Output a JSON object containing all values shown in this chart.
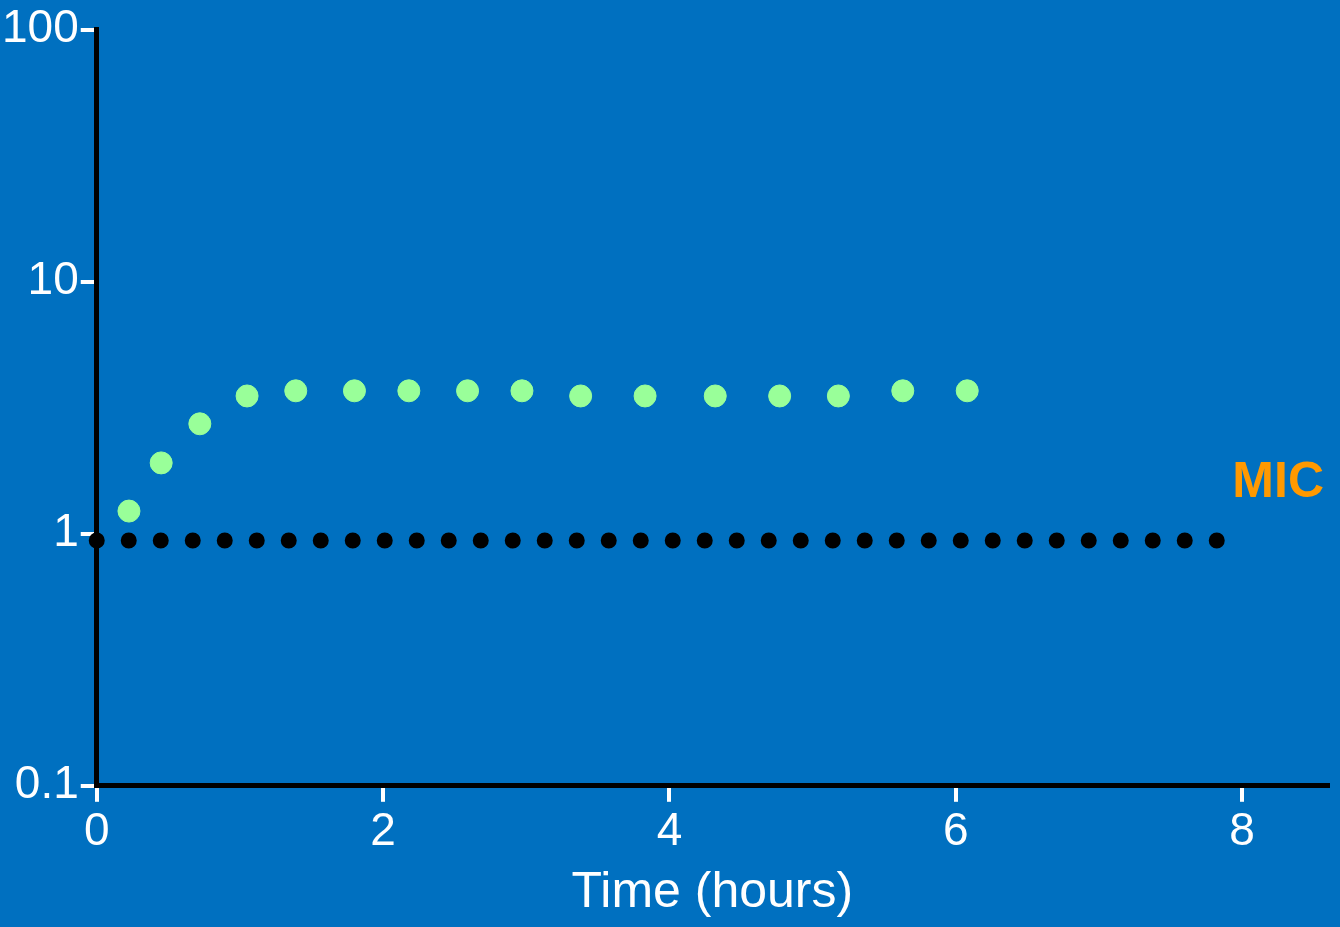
{
  "chart_data": {
    "type": "scatter",
    "xlabel": "Time (hours)",
    "x": [
      0.225,
      0.45,
      0.72,
      1.05,
      1.39,
      1.8,
      2.18,
      2.59,
      2.97,
      3.38,
      3.83,
      4.32,
      4.77,
      5.18,
      5.63,
      6.08
    ],
    "series": [
      {
        "color": "#99ff99",
        "values": [
          1.23,
          1.91,
          2.73,
          3.52,
          3.69,
          3.69,
          3.69,
          3.69,
          3.69,
          3.52,
          3.52,
          3.52,
          3.52,
          3.52,
          3.69,
          3.69
        ]
      }
    ],
    "xlim": [
      0,
      8.6
    ],
    "xticks": [
      0,
      2,
      4,
      6,
      8
    ],
    "ylim": [
      0.1,
      100
    ],
    "yticks": [
      0.1,
      1,
      10,
      100
    ],
    "log": "y",
    "grid": false,
    "legend": false,
    "marker": "circle",
    "ref_lines": [
      {
        "axis": "y",
        "value": 0.94,
        "label": "MIC",
        "color": "#000000",
        "line_style": "dotted"
      }
    ]
  }
}
